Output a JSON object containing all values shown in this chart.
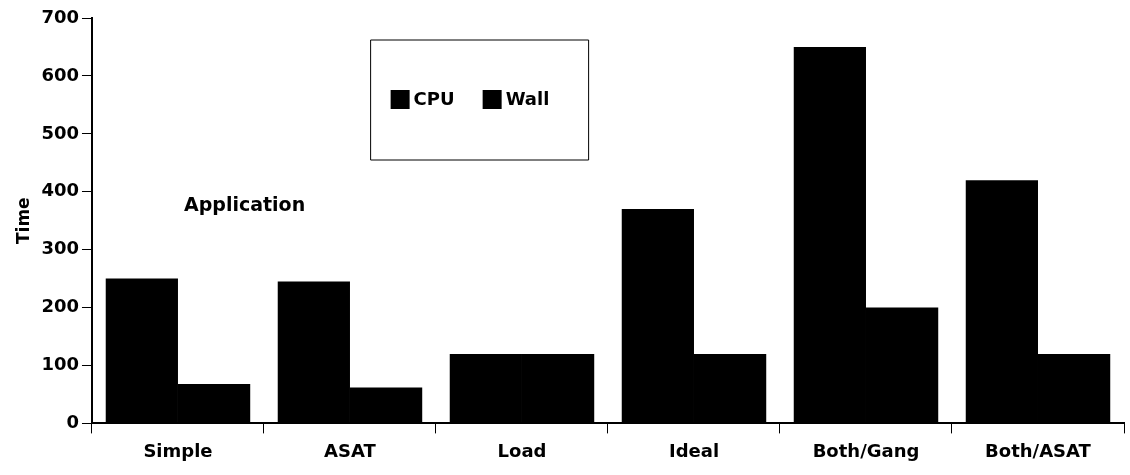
{
  "chart_data": {
    "type": "bar",
    "ylabel": "Time",
    "categories": [
      "Simple",
      "ASAT",
      "Load",
      "Ideal",
      "Both/Gang",
      "Both/ASAT"
    ],
    "series": [
      {
        "name": "CPU",
        "color": "#000000",
        "values": [
          250,
          245,
          120,
          370,
          650,
          420
        ]
      },
      {
        "name": "Wall",
        "color": "#000000",
        "values": [
          68,
          62,
          120,
          120,
          200,
          120
        ]
      }
    ],
    "ylim": [
      0,
      700
    ],
    "yticks": [
      0,
      100,
      200,
      300,
      400,
      500,
      600,
      700
    ],
    "grid": false,
    "legend": "top",
    "annotations": [
      "Application"
    ]
  }
}
